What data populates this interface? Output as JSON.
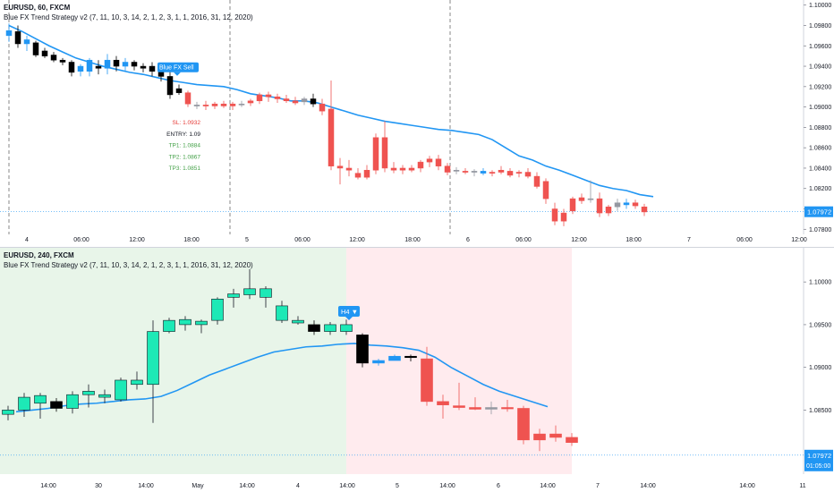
{
  "top_chart": {
    "symbol": "EURUSD, 60, FXCM",
    "indicator": "Blue FX Trend Strategy v2 (7, 11, 10, 3, 14, 2, 1, 2, 3, 1, 1, 2016, 31, 12, 2020)",
    "signal_label": "Blue FX Sell",
    "sl": "SL: 1.0932",
    "entry": "ENTRY: 1.09",
    "tp1": "TP1: 1.0884",
    "tp2": "TP2: 1.0867",
    "tp3": "TP3: 1.0851",
    "last_price": "1.07972",
    "price_ticks": [
      "1.10000",
      "1.09800",
      "1.09600",
      "1.09400",
      "1.09200",
      "1.09000",
      "1.08800",
      "1.08600",
      "1.08400",
      "1.08200",
      "1.08000",
      "1.07800"
    ],
    "time_ticks": [
      "4",
      "06:00",
      "12:00",
      "18:00",
      "5",
      "06:00",
      "12:00",
      "18:00",
      "6",
      "06:00",
      "12:00",
      "18:00",
      "7",
      "06:00",
      "12:00"
    ]
  },
  "bottom_chart": {
    "symbol": "EURUSD, 240, FXCM",
    "indicator": "Blue FX Trend Strategy v2 (7, 11, 10, 3, 14, 2, 1, 2, 3, 1, 1, 2016, 31, 12, 2020)",
    "signal_label": "H4 ▼",
    "last_price": "1.07972",
    "countdown": "01:05:00",
    "price_ticks": [
      "1.10000",
      "1.09500",
      "1.09000",
      "1.08500"
    ],
    "time_ticks": [
      "14:00",
      "30",
      "14:00",
      "May",
      "14:00",
      "4",
      "14:00",
      "5",
      "14:00",
      "6",
      "14:00",
      "7",
      "14:00",
      "14:00",
      "11"
    ]
  },
  "colors": {
    "bull": "#26a69a",
    "bull_bright": "#1de9b6",
    "bear": "#ef5350",
    "blue_candle": "#2196f3",
    "black_candle": "#000000",
    "trend_line": "#2196f3",
    "last_price_line": "#2196f3",
    "bg_green": "#e8f5e9",
    "bg_red": "#ffebee"
  },
  "chart_data": [
    {
      "type": "candlestick",
      "title": "EURUSD, 60, FXCM",
      "ylim": [
        1.0775,
        1.1005
      ],
      "candles": [
        {
          "o": 1.0975,
          "h": 1.0982,
          "l": 1.0964,
          "c": 1.097,
          "k": "blue"
        },
        {
          "o": 1.0974,
          "h": 1.098,
          "l": 1.0958,
          "c": 1.0962,
          "k": "black"
        },
        {
          "o": 1.0962,
          "h": 1.097,
          "l": 1.0955,
          "c": 1.0966,
          "k": "blue"
        },
        {
          "o": 1.0963,
          "h": 1.0965,
          "l": 1.0949,
          "c": 1.0951,
          "k": "black"
        },
        {
          "o": 1.0955,
          "h": 1.0958,
          "l": 1.0948,
          "c": 1.095,
          "k": "black"
        },
        {
          "o": 1.0951,
          "h": 1.0954,
          "l": 1.0944,
          "c": 1.0946,
          "k": "black"
        },
        {
          "o": 1.0946,
          "h": 1.0948,
          "l": 1.0941,
          "c": 1.0944,
          "k": "black"
        },
        {
          "o": 1.0944,
          "h": 1.0946,
          "l": 1.093,
          "c": 1.0934,
          "k": "black"
        },
        {
          "o": 1.0935,
          "h": 1.0942,
          "l": 1.093,
          "c": 1.094,
          "k": "blue"
        },
        {
          "o": 1.0935,
          "h": 1.0948,
          "l": 1.093,
          "c": 1.0946,
          "k": "blue"
        },
        {
          "o": 1.094,
          "h": 1.0946,
          "l": 1.0932,
          "c": 1.0938,
          "k": "black"
        },
        {
          "o": 1.0938,
          "h": 1.0952,
          "l": 1.0932,
          "c": 1.0946,
          "k": "blue"
        },
        {
          "o": 1.0946,
          "h": 1.095,
          "l": 1.0935,
          "c": 1.094,
          "k": "black"
        },
        {
          "o": 1.094,
          "h": 1.0948,
          "l": 1.0935,
          "c": 1.0944,
          "k": "blue"
        },
        {
          "o": 1.0944,
          "h": 1.0946,
          "l": 1.0936,
          "c": 1.094,
          "k": "black"
        },
        {
          "o": 1.094,
          "h": 1.0943,
          "l": 1.0934,
          "c": 1.0938,
          "k": "black"
        },
        {
          "o": 1.094,
          "h": 1.0944,
          "l": 1.093,
          "c": 1.0935,
          "k": "black"
        },
        {
          "o": 1.0935,
          "h": 1.094,
          "l": 1.0925,
          "c": 1.093,
          "k": "black"
        },
        {
          "o": 1.093,
          "h": 1.0935,
          "l": 1.0908,
          "c": 1.0912,
          "k": "black"
        },
        {
          "o": 1.0918,
          "h": 1.0922,
          "l": 1.0912,
          "c": 1.0914,
          "k": "black"
        },
        {
          "o": 1.0914,
          "h": 1.0916,
          "l": 1.09,
          "c": 1.0903,
          "k": "red"
        },
        {
          "o": 1.0902,
          "h": 1.0905,
          "l": 1.0898,
          "c": 1.0902,
          "k": "gray"
        },
        {
          "o": 1.0902,
          "h": 1.0906,
          "l": 1.0897,
          "c": 1.0901,
          "k": "red"
        },
        {
          "o": 1.0901,
          "h": 1.0905,
          "l": 1.0898,
          "c": 1.0903,
          "k": "red"
        },
        {
          "o": 1.0903,
          "h": 1.0906,
          "l": 1.0899,
          "c": 1.0901,
          "k": "red"
        },
        {
          "o": 1.0901,
          "h": 1.0905,
          "l": 1.0897,
          "c": 1.0903,
          "k": "red"
        },
        {
          "o": 1.0903,
          "h": 1.0906,
          "l": 1.09,
          "c": 1.0902,
          "k": "gray"
        },
        {
          "o": 1.0904,
          "h": 1.0908,
          "l": 1.0901,
          "c": 1.0906,
          "k": "red"
        },
        {
          "o": 1.0906,
          "h": 1.0914,
          "l": 1.0903,
          "c": 1.0912,
          "k": "red"
        },
        {
          "o": 1.0912,
          "h": 1.0915,
          "l": 1.0905,
          "c": 1.091,
          "k": "red"
        },
        {
          "o": 1.091,
          "h": 1.0913,
          "l": 1.0904,
          "c": 1.0908,
          "k": "red"
        },
        {
          "o": 1.0908,
          "h": 1.0912,
          "l": 1.0904,
          "c": 1.0906,
          "k": "red"
        },
        {
          "o": 1.0906,
          "h": 1.091,
          "l": 1.0902,
          "c": 1.0904,
          "k": "red"
        },
        {
          "o": 1.0905,
          "h": 1.091,
          "l": 1.0902,
          "c": 1.0908,
          "k": "gray"
        },
        {
          "o": 1.0908,
          "h": 1.0913,
          "l": 1.09,
          "c": 1.0903,
          "k": "black"
        },
        {
          "o": 1.0903,
          "h": 1.0908,
          "l": 1.0892,
          "c": 1.0896,
          "k": "red"
        },
        {
          "o": 1.0898,
          "h": 1.0926,
          "l": 1.0838,
          "c": 1.0842,
          "k": "red"
        },
        {
          "o": 1.0842,
          "h": 1.085,
          "l": 1.0824,
          "c": 1.084,
          "k": "red"
        },
        {
          "o": 1.084,
          "h": 1.0848,
          "l": 1.0832,
          "c": 1.0838,
          "k": "red"
        },
        {
          "o": 1.0835,
          "h": 1.084,
          "l": 1.0829,
          "c": 1.0831,
          "k": "red"
        },
        {
          "o": 1.0831,
          "h": 1.0843,
          "l": 1.0829,
          "c": 1.0838,
          "k": "red"
        },
        {
          "o": 1.0838,
          "h": 1.0874,
          "l": 1.0834,
          "c": 1.087,
          "k": "red"
        },
        {
          "o": 1.087,
          "h": 1.0886,
          "l": 1.0836,
          "c": 1.084,
          "k": "red"
        },
        {
          "o": 1.084,
          "h": 1.0846,
          "l": 1.0835,
          "c": 1.0838,
          "k": "red"
        },
        {
          "o": 1.0838,
          "h": 1.0843,
          "l": 1.0834,
          "c": 1.084,
          "k": "red"
        },
        {
          "o": 1.084,
          "h": 1.0843,
          "l": 1.0836,
          "c": 1.0838,
          "k": "red"
        },
        {
          "o": 1.084,
          "h": 1.0848,
          "l": 1.0836,
          "c": 1.0846,
          "k": "red"
        },
        {
          "o": 1.0846,
          "h": 1.0852,
          "l": 1.0841,
          "c": 1.0849,
          "k": "red"
        },
        {
          "o": 1.0849,
          "h": 1.0853,
          "l": 1.0838,
          "c": 1.0842,
          "k": "red"
        },
        {
          "o": 1.0842,
          "h": 1.0845,
          "l": 1.0833,
          "c": 1.0836,
          "k": "red"
        },
        {
          "o": 1.0838,
          "h": 1.0841,
          "l": 1.0834,
          "c": 1.0837,
          "k": "gray"
        },
        {
          "o": 1.0837,
          "h": 1.084,
          "l": 1.0834,
          "c": 1.0836,
          "k": "red"
        },
        {
          "o": 1.0836,
          "h": 1.0839,
          "l": 1.0832,
          "c": 1.0837,
          "k": "gray"
        },
        {
          "o": 1.0837,
          "h": 1.084,
          "l": 1.0833,
          "c": 1.0835,
          "k": "blue"
        },
        {
          "o": 1.0835,
          "h": 1.0838,
          "l": 1.0832,
          "c": 1.0836,
          "k": "red"
        },
        {
          "o": 1.0838,
          "h": 1.0842,
          "l": 1.0834,
          "c": 1.0836,
          "k": "red"
        },
        {
          "o": 1.0837,
          "h": 1.084,
          "l": 1.0831,
          "c": 1.0833,
          "k": "red"
        },
        {
          "o": 1.0835,
          "h": 1.0838,
          "l": 1.0831,
          "c": 1.0836,
          "k": "red"
        },
        {
          "o": 1.0836,
          "h": 1.084,
          "l": 1.083,
          "c": 1.0832,
          "k": "red"
        },
        {
          "o": 1.0832,
          "h": 1.0836,
          "l": 1.082,
          "c": 1.0822,
          "k": "red"
        },
        {
          "o": 1.0827,
          "h": 1.083,
          "l": 1.0805,
          "c": 1.081,
          "k": "red"
        },
        {
          "o": 1.08,
          "h": 1.0806,
          "l": 1.0784,
          "c": 1.0788,
          "k": "red"
        },
        {
          "o": 1.0788,
          "h": 1.08,
          "l": 1.0783,
          "c": 1.0796,
          "k": "red"
        },
        {
          "o": 1.0798,
          "h": 1.0812,
          "l": 1.0795,
          "c": 1.081,
          "k": "red"
        },
        {
          "o": 1.0808,
          "h": 1.0815,
          "l": 1.0805,
          "c": 1.0811,
          "k": "red"
        },
        {
          "o": 1.081,
          "h": 1.0828,
          "l": 1.0806,
          "c": 1.0809,
          "k": "gray"
        },
        {
          "o": 1.081,
          "h": 1.0816,
          "l": 1.0792,
          "c": 1.0796,
          "k": "red"
        },
        {
          "o": 1.0796,
          "h": 1.0804,
          "l": 1.0793,
          "c": 1.0802,
          "k": "red"
        },
        {
          "o": 1.0802,
          "h": 1.081,
          "l": 1.0798,
          "c": 1.0806,
          "k": "gray"
        },
        {
          "o": 1.0806,
          "h": 1.081,
          "l": 1.08,
          "c": 1.0804,
          "k": "blue"
        },
        {
          "o": 1.0806,
          "h": 1.0809,
          "l": 1.08,
          "c": 1.0803,
          "k": "red"
        },
        {
          "o": 1.0802,
          "h": 1.0805,
          "l": 1.0793,
          "c": 1.0797,
          "k": "red"
        }
      ],
      "trend_line": [
        1.098,
        1.0974,
        1.0967,
        1.096,
        1.0954,
        1.0948,
        1.0944,
        1.094,
        1.0937,
        1.0934,
        1.0932,
        1.0929,
        1.0926,
        1.0924,
        1.0922,
        1.0921,
        1.092,
        1.0917,
        1.0913,
        1.0911,
        1.0909,
        1.0906,
        1.0906,
        1.0904,
        1.09,
        1.0896,
        1.0892,
        1.0889,
        1.0886,
        1.0884,
        1.0882,
        1.088,
        1.0878,
        1.0877,
        1.0875,
        1.0873,
        1.0868,
        1.086,
        1.0852,
        1.0848,
        1.0842,
        1.0838,
        1.0833,
        1.0828,
        1.0823,
        1.082,
        1.0818,
        1.0814,
        1.0812
      ],
      "trend_line_start": 0,
      "trend_line_step": 1.5,
      "last_price": 1.07972
    },
    {
      "type": "candlestick",
      "title": "EURUSD, 240, FXCM",
      "ylim": [
        1.0775,
        1.104
      ],
      "candles": [
        {
          "o": 1.0845,
          "h": 1.0855,
          "l": 1.0838,
          "c": 1.085,
          "k": "bull"
        },
        {
          "o": 1.085,
          "h": 1.087,
          "l": 1.0842,
          "c": 1.0865,
          "k": "bull"
        },
        {
          "o": 1.0858,
          "h": 1.087,
          "l": 1.084,
          "c": 1.0867,
          "k": "bull"
        },
        {
          "o": 1.086,
          "h": 1.0864,
          "l": 1.0848,
          "c": 1.0852,
          "k": "black"
        },
        {
          "o": 1.0852,
          "h": 1.0872,
          "l": 1.0846,
          "c": 1.0868,
          "k": "bull"
        },
        {
          "o": 1.0868,
          "h": 1.088,
          "l": 1.0853,
          "c": 1.0872,
          "k": "bull"
        },
        {
          "o": 1.0865,
          "h": 1.0874,
          "l": 1.0858,
          "c": 1.0868,
          "k": "bull"
        },
        {
          "o": 1.0862,
          "h": 1.0888,
          "l": 1.086,
          "c": 1.0885,
          "k": "bull"
        },
        {
          "o": 1.088,
          "h": 1.0895,
          "l": 1.0874,
          "c": 1.0885,
          "k": "bull"
        },
        {
          "o": 1.088,
          "h": 1.0955,
          "l": 1.0835,
          "c": 1.0942,
          "k": "bull"
        },
        {
          "o": 1.0942,
          "h": 1.0958,
          "l": 1.094,
          "c": 1.0955,
          "k": "bull"
        },
        {
          "o": 1.095,
          "h": 1.096,
          "l": 1.0943,
          "c": 1.0956,
          "k": "bull"
        },
        {
          "o": 1.095,
          "h": 1.0956,
          "l": 1.094,
          "c": 1.0954,
          "k": "bull"
        },
        {
          "o": 1.0955,
          "h": 1.0982,
          "l": 1.095,
          "c": 1.098,
          "k": "bull"
        },
        {
          "o": 1.0982,
          "h": 1.0992,
          "l": 1.097,
          "c": 1.0986,
          "k": "bull"
        },
        {
          "o": 1.0985,
          "h": 1.1015,
          "l": 1.098,
          "c": 1.0992,
          "k": "bull"
        },
        {
          "o": 1.0982,
          "h": 1.0995,
          "l": 1.097,
          "c": 1.0992,
          "k": "bull"
        },
        {
          "o": 1.0972,
          "h": 1.0978,
          "l": 1.0952,
          "c": 1.0955,
          "k": "bull"
        },
        {
          "o": 1.0955,
          "h": 1.096,
          "l": 1.095,
          "c": 1.0952,
          "k": "bull"
        },
        {
          "o": 1.095,
          "h": 1.0955,
          "l": 1.0938,
          "c": 1.0942,
          "k": "black"
        },
        {
          "o": 1.0942,
          "h": 1.0953,
          "l": 1.0938,
          "c": 1.095,
          "k": "bull"
        },
        {
          "o": 1.095,
          "h": 1.0956,
          "l": 1.0938,
          "c": 1.0942,
          "k": "bull"
        },
        {
          "o": 1.0938,
          "h": 1.094,
          "l": 1.09,
          "c": 1.0905,
          "k": "black"
        },
        {
          "o": 1.0905,
          "h": 1.091,
          "l": 1.0902,
          "c": 1.0908,
          "k": "blue"
        },
        {
          "o": 1.0908,
          "h": 1.0915,
          "l": 1.0908,
          "c": 1.0913,
          "k": "blue"
        },
        {
          "o": 1.0913,
          "h": 1.0915,
          "l": 1.0907,
          "c": 1.0912,
          "k": "black"
        },
        {
          "o": 1.091,
          "h": 1.0924,
          "l": 1.0855,
          "c": 1.086,
          "k": "red"
        },
        {
          "o": 1.086,
          "h": 1.0868,
          "l": 1.084,
          "c": 1.0856,
          "k": "red"
        },
        {
          "o": 1.0855,
          "h": 1.0882,
          "l": 1.085,
          "c": 1.0853,
          "k": "red"
        },
        {
          "o": 1.0853,
          "h": 1.0865,
          "l": 1.085,
          "c": 1.0851,
          "k": "red"
        },
        {
          "o": 1.0851,
          "h": 1.086,
          "l": 1.0845,
          "c": 1.0853,
          "k": "gray"
        },
        {
          "o": 1.0853,
          "h": 1.0862,
          "l": 1.0848,
          "c": 1.0852,
          "k": "red"
        },
        {
          "o": 1.0852,
          "h": 1.0855,
          "l": 1.081,
          "c": 1.0815,
          "k": "red"
        },
        {
          "o": 1.0815,
          "h": 1.0828,
          "l": 1.0802,
          "c": 1.0822,
          "k": "red"
        },
        {
          "o": 1.0822,
          "h": 1.0832,
          "l": 1.0813,
          "c": 1.0818,
          "k": "red"
        },
        {
          "o": 1.0818,
          "h": 1.0823,
          "l": 1.0808,
          "c": 1.0812,
          "k": "red"
        }
      ],
      "trend_line": [
        1.0848,
        1.085,
        1.0852,
        1.0855,
        1.0857,
        1.0858,
        1.086,
        1.0862,
        1.0863,
        1.0866,
        1.0873,
        1.0882,
        1.0891,
        1.0898,
        1.0905,
        1.0912,
        1.0918,
        1.0921,
        1.0924,
        1.0925,
        1.0927,
        1.0928,
        1.0926,
        1.0925,
        1.0923,
        1.092,
        1.0912,
        1.09,
        1.089,
        1.088,
        1.0872,
        1.0866,
        1.086,
        1.0854
      ],
      "last_price": 1.07972,
      "bg_bull_range": [
        0,
        21
      ],
      "bg_bear_range": [
        22,
        35
      ]
    }
  ]
}
